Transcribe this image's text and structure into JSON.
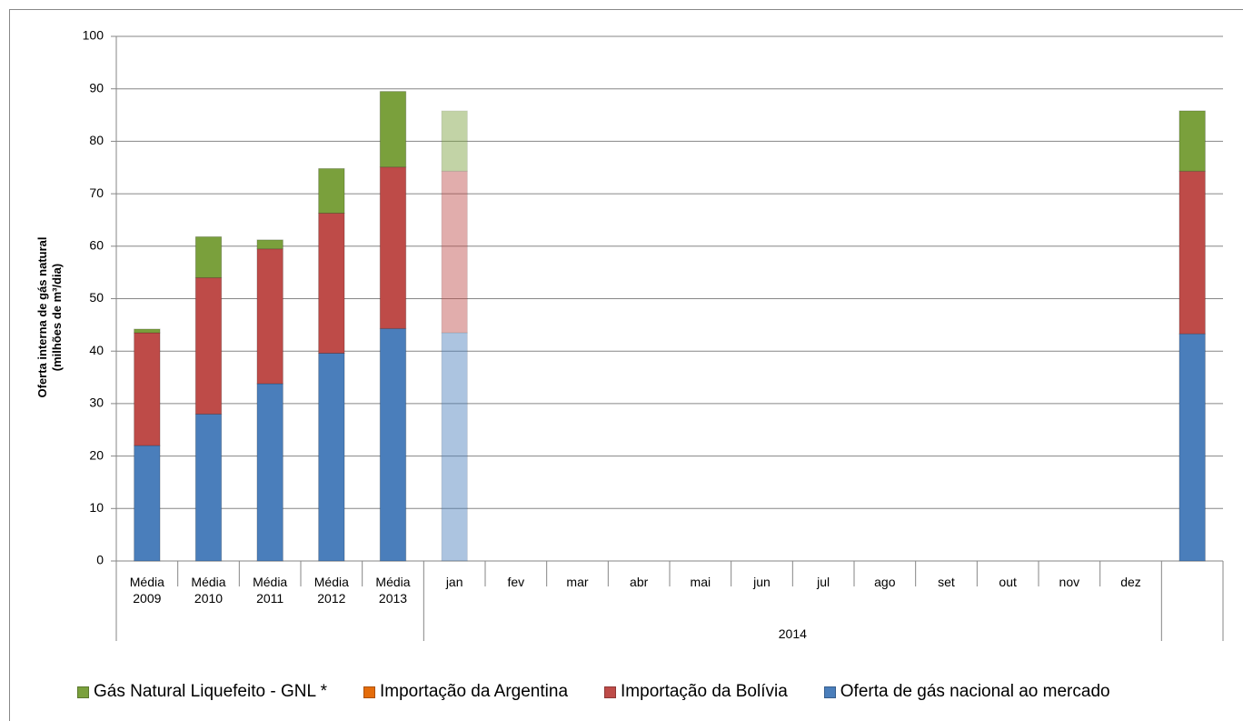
{
  "chart_data": {
    "type": "stacked_bar",
    "ylabel": [
      "Oferta interna de gás natural",
      "(milhões de m³/dia)"
    ],
    "categories": [
      "Média 2009",
      "Média 2010",
      "Média 2011",
      "Média 2012",
      "Média 2013",
      "jan",
      "fev",
      "mar",
      "abr",
      "mai",
      "jun",
      "jul",
      "ago",
      "set",
      "out",
      "nov",
      "dez",
      null
    ],
    "groups": [
      {
        "label": "2014",
        "start": 5,
        "end": 16
      }
    ],
    "series": [
      {
        "name": "Oferta de gás nacional ao mercado",
        "color": "#4a7ebb",
        "values": [
          22,
          28,
          33.8,
          39.6,
          44.3,
          43.5,
          null,
          null,
          null,
          null,
          null,
          null,
          null,
          null,
          null,
          null,
          null,
          43.3
        ]
      },
      {
        "name": "Importação da Bolívia",
        "color": "#be4b48",
        "values": [
          21.5,
          26,
          25.7,
          26.7,
          30.8,
          30.8,
          null,
          null,
          null,
          null,
          null,
          null,
          null,
          null,
          null,
          null,
          null,
          31
        ]
      },
      {
        "name": "Importação da Argentina",
        "color": "#e46c0a",
        "values": [
          0,
          0,
          0,
          0,
          0,
          0,
          null,
          null,
          null,
          null,
          null,
          null,
          null,
          null,
          null,
          null,
          null,
          0
        ]
      },
      {
        "name": "Gás Natural Liquefeito - GNL *",
        "color": "#7aa03c",
        "values": [
          0.7,
          7.8,
          1.7,
          8.5,
          14.4,
          11.5,
          null,
          null,
          null,
          null,
          null,
          null,
          null,
          null,
          null,
          null,
          null,
          11.5
        ]
      }
    ],
    "ylim": [
      0,
      100
    ],
    "yticks": [
      0,
      10,
      20,
      30,
      40,
      50,
      60,
      70,
      80,
      90,
      100
    ],
    "grid": true
  }
}
